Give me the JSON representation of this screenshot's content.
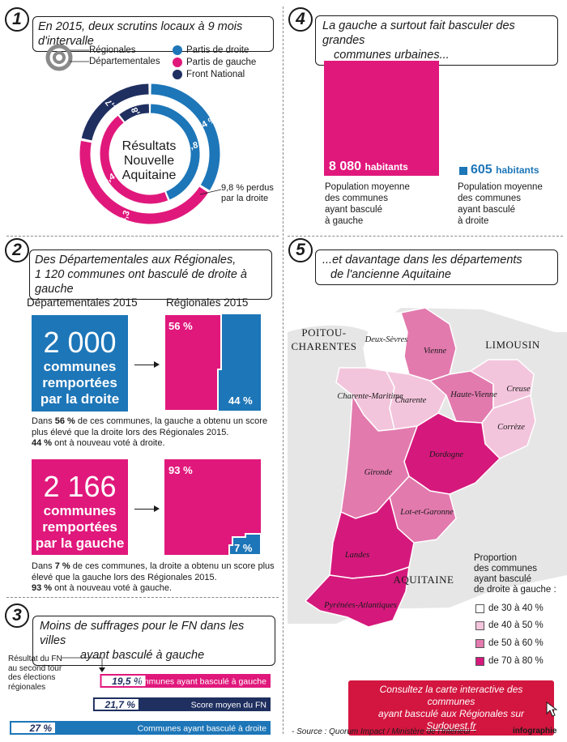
{
  "colors": {
    "droite": "#1d76b8",
    "gauche": "#e0187c",
    "fn": "#1f2f60",
    "cta": "#d3163f",
    "map_30_40": "#ffffff",
    "map_40_50": "#f3c5dc",
    "map_50_60": "#e27aae",
    "map_70_80": "#d5197c"
  },
  "section1": {
    "number": "1",
    "title": "En 2015, deux scrutins locaux à 9 mois d'intervalle",
    "legend": {
      "regionales": "Régionales",
      "departementales": "Départementales",
      "droite": "Partis de droite",
      "gauche": "Partis de gauche",
      "fn": "Front National"
    },
    "center_line1": "Résultats",
    "center_line2": "Nouvelle",
    "center_line3": "Aquitaine",
    "lost_note_line1": "9,8 % perdus",
    "lost_note_line2": "par la droite"
  },
  "section2": {
    "number": "2",
    "title_line1": "Des Départementales aux Régionales,",
    "title_line2": "1 120 communes ont basculé de droite à gauche",
    "col_left": "Départementales 2015",
    "col_right": "Régionales 2015",
    "box1_num": "2 000",
    "box1_sub1": "communes",
    "box1_sub2": "remportées",
    "box1_sub3": "par la droite",
    "box1_top_pct": "56 %",
    "box1_bottom_pct": "44 %",
    "box1_text_1a": "Dans ",
    "box1_text_1b": "56 %",
    "box1_text_1c": " de ces communes, la gauche a obtenu un score",
    "box1_text_2": "plus élevé que la droite lors des Régionales 2015.",
    "box1_text_3a": "44 %",
    "box1_text_3b": " ont à nouveau voté à droite.",
    "box2_num": "2 166",
    "box2_sub1": "communes",
    "box2_sub2": "remportées",
    "box2_sub3": "par la gauche",
    "box2_top_pct": "93 %",
    "box2_bottom_pct": "7 %",
    "box2_text_1a": "Dans ",
    "box2_text_1b": "7 %",
    "box2_text_1c": " de ces communes, la droite a obtenu un score plus",
    "box2_text_2": "élevé que la gauche lors des Régionales 2015.",
    "box2_text_3a": "93 %",
    "box2_text_3b": " ont à nouveau voté à gauche."
  },
  "section3": {
    "number": "3",
    "title_line1": "Moins de suffrages pour le FN dans les villes",
    "title_line2": "ayant basculé à gauche",
    "side_note_1": "Résultat du FN",
    "side_note_2": "au second tour",
    "side_note_3": "des élections",
    "side_note_4": "régionales"
  },
  "section4": {
    "number": "4",
    "title_line1": "La gauche a surtout fait basculer des grandes",
    "title_line2": "communes urbaines...",
    "left_value": "8 080",
    "left_unit": "habitants",
    "left_desc": [
      "Population moyenne",
      "des communes",
      "ayant basculé",
      "à gauche"
    ],
    "right_value": "605",
    "right_unit": "habitants",
    "right_desc": [
      "Population moyenne",
      "des communes",
      "ayant basculé",
      "à droite"
    ]
  },
  "section5": {
    "number": "5",
    "title_line1": "...et davantage dans les départements",
    "title_line2": "de l'ancienne Aquitaine",
    "region_poitou_1": "POITOU-",
    "region_poitou_2": "CHARENTES",
    "region_limousin": "LIMOUSIN",
    "region_aquitaine": "AQUITAINE",
    "legend_title": [
      "Proportion",
      "des communes",
      "ayant basculé",
      "de droite à gauche :"
    ],
    "legend_items": [
      "de 30 à 40 %",
      "de 40 à 50 %",
      "de 50 à 60 %",
      "de 70 à 80 %"
    ],
    "cta_line1": "Consultez la carte interactive des communes",
    "cta_line2a": "ayant basculé aux Régionales sur ",
    "cta_line2b": "Sudouest.fr"
  },
  "footer": {
    "source": "- Source : Quorum Impact / Ministère de l'Intérieur -",
    "brand": "infographie"
  },
  "chart_data": [
    {
      "type": "pie",
      "title": "Résultats Nouvelle Aquitaine",
      "series": [
        {
          "name": "Régionales",
          "labels": [
            "Partis de droite",
            "Partis de gauche",
            "Front National"
          ],
          "values": [
            34.0,
            44.3,
            21.7
          ]
        },
        {
          "name": "Départementales",
          "labels": [
            "Partis de droite",
            "Partis de gauche",
            "Front National"
          ],
          "values": [
            43.8,
            45.4,
            10.8
          ]
        }
      ],
      "value_labels_outer": [
        "34 %",
        "44,3 %",
        "21,7 %"
      ],
      "value_labels_inner": [
        "43,8 %",
        "45,4 %",
        "10,8 %"
      ],
      "annotations": [
        "9,8 % perdus par la droite"
      ]
    },
    {
      "type": "bar",
      "categories": [
        "Communes ayant basculé à gauche",
        "Score moyen du FN",
        "Communes ayant basculé à droite"
      ],
      "values": [
        19.5,
        21.7,
        27
      ],
      "value_labels": [
        "19,5 %",
        "21,7 %",
        "27 %"
      ],
      "series_colors": [
        "#e0187c",
        "#1f2f60",
        "#1d76b8"
      ],
      "xlim": [
        0,
        30
      ]
    },
    {
      "type": "bar",
      "categories": [
        "ayant basculé à gauche",
        "ayant basculé à droite"
      ],
      "values": [
        8080,
        605
      ],
      "value_labels": [
        "8 080 habitants",
        "605 habitants"
      ]
    },
    {
      "type": "bar",
      "categories": [
        "Départementales 2015 droite",
        "Régionales 2015 gauche",
        "Régionales 2015 droite"
      ],
      "values": [
        2000,
        56,
        44
      ],
      "value_labels": [
        "2 000",
        "56 %",
        "44 %"
      ]
    },
    {
      "type": "bar",
      "categories": [
        "Départementales 2015 gauche",
        "Régionales 2015 gauche",
        "Régionales 2015 droite"
      ],
      "values": [
        2166,
        93,
        7
      ],
      "value_labels": [
        "2 166",
        "93 %",
        "7 %"
      ]
    },
    {
      "type": "heatmap",
      "categories": [
        "Deux-Sèvres",
        "Vienne",
        "Charente-Maritime",
        "Charente",
        "Haute-Vienne",
        "Creuse",
        "Corrèze",
        "Dordogne",
        "Gironde",
        "Lot-et-Garonne",
        "Landes",
        "Pyrénées-Atlantiques"
      ],
      "bins": [
        "de 30 à 40 %",
        "de 40 à 50 %",
        "de 50 à 60 %",
        "de 70 à 80 %"
      ],
      "values": [
        "de 30 à 40 %",
        "de 50 à 60 %",
        "de 40 à 50 %",
        "de 40 à 50 %",
        "de 50 à 60 %",
        "de 40 à 50 %",
        "de 40 à 50 %",
        "de 70 à 80 %",
        "de 50 à 60 %",
        "de 50 à 60 %",
        "de 70 à 80 %",
        "de 70 à 80 %"
      ]
    }
  ]
}
